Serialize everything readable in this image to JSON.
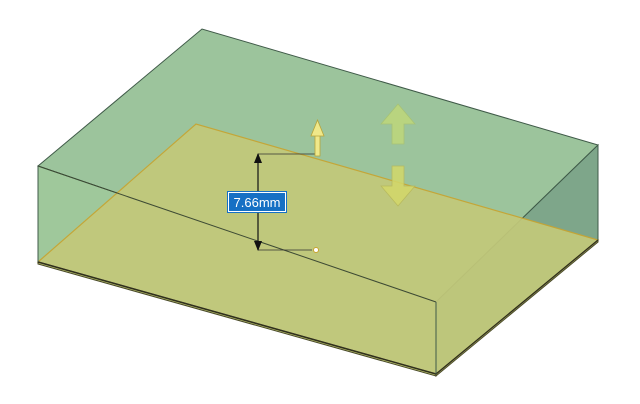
{
  "viewport": {
    "dimension_value": "7.66mm"
  },
  "colors": {
    "upper_volume_fill": "#9cc49c",
    "upper_volume_side": "#6e9f80",
    "upper_volume_right": "#7ea68a",
    "lower_volume_top": "#c3c97a",
    "lower_volume_front": "#bcc46e",
    "lower_volume_right": "#a6a85e",
    "edge": "#4a4a2a",
    "edge_highlight": "#c8a430",
    "drag_arrow": "#efe88a",
    "push_pull_arrow": "#bfd77a",
    "dimension_box": "#1670c4"
  },
  "icons": {
    "drag_handle": "arrow-up-icon",
    "push_pull_up": "arrow-up-icon",
    "push_pull_down": "arrow-down-icon"
  }
}
